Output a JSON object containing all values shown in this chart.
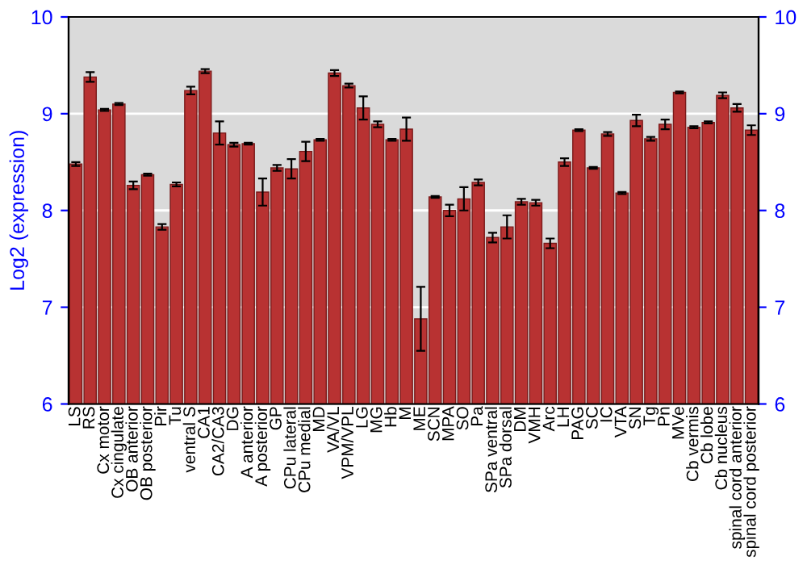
{
  "chart_data": {
    "type": "bar",
    "ylabel": "Log2 (expression)",
    "categories": [
      "LS",
      "RS",
      "Cx motor",
      "Cx cingulate",
      "OB anterior",
      "OB posterior",
      "Pir",
      "Tu",
      "ventral S",
      "CA1",
      "CA2/CA3",
      "DG",
      "A anterior",
      "A posterior",
      "GP",
      "CPu lateral",
      "CPu medial",
      "MD",
      "VA/VL",
      "VPM/VPL",
      "LG",
      "MG",
      "Hb",
      "M",
      "ME",
      "SCN",
      "MPA",
      "SO",
      "Pa",
      "SPa ventral",
      "SPa dorsal",
      "DM",
      "VMH",
      "Arc",
      "LH",
      "PAG",
      "SC",
      "IC",
      "VTA",
      "SN",
      "Tg",
      "Pn",
      "MVe",
      "Cb vermis",
      "Cb lobe",
      "Cb nucleus",
      "spinal cord anterior",
      "spinal cord posterior"
    ],
    "values": [
      8.48,
      9.38,
      9.04,
      9.1,
      8.26,
      8.37,
      7.83,
      8.27,
      9.24,
      9.44,
      8.8,
      8.68,
      8.69,
      8.19,
      8.44,
      8.43,
      8.61,
      8.73,
      9.42,
      9.29,
      9.06,
      8.89,
      8.73,
      8.84,
      6.88,
      8.14,
      8.0,
      8.12,
      8.29,
      7.72,
      7.83,
      8.09,
      8.08,
      7.66,
      8.5,
      8.83,
      8.44,
      8.79,
      8.18,
      8.93,
      8.74,
      8.89,
      9.22,
      8.86,
      8.91,
      9.19,
      9.06,
      8.83
    ],
    "errors": [
      0.02,
      0.05,
      0.01,
      0.01,
      0.04,
      0.01,
      0.03,
      0.02,
      0.04,
      0.02,
      0.12,
      0.02,
      0.01,
      0.14,
      0.03,
      0.1,
      0.1,
      0.01,
      0.03,
      0.02,
      0.12,
      0.03,
      0.01,
      0.12,
      0.33,
      0.01,
      0.06,
      0.12,
      0.03,
      0.05,
      0.12,
      0.03,
      0.03,
      0.05,
      0.04,
      0.01,
      0.01,
      0.02,
      0.01,
      0.06,
      0.02,
      0.05,
      0.01,
      0.01,
      0.01,
      0.03,
      0.04,
      0.05
    ],
    "color": "#b83232",
    "ylim": [
      6,
      10
    ],
    "yticks": [
      6,
      7,
      8,
      9,
      10
    ],
    "y2lim": [
      6,
      10
    ],
    "y2ticks": [
      6,
      7,
      8,
      9,
      10
    ],
    "grid": "y"
  }
}
